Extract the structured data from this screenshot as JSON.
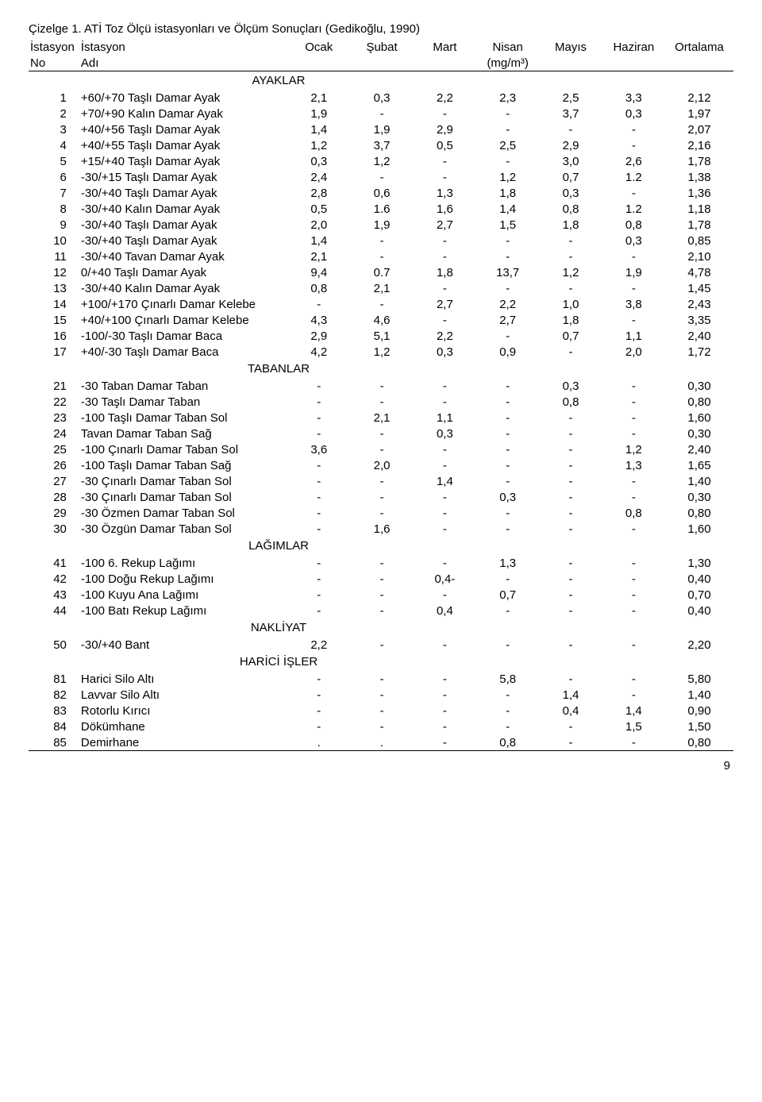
{
  "caption": "Çizelge 1. ATİ Toz Ölçü istasyonları ve Ölçüm Sonuçları (Gedikoğlu, 1990)",
  "header": {
    "col1_line1": "İstasyon",
    "col1_line2": "No",
    "col2_line1": "İstasyon",
    "col2_line2": "Adı",
    "m1": "Ocak",
    "m2": "Şubat",
    "m3": "Mart",
    "m4": "Nisan",
    "unit": "(mg/m³)",
    "m5": "Mayıs",
    "m6": "Haziran",
    "ort": "Ortalama"
  },
  "sections": [
    {
      "title": "AYAKLAR",
      "rows": [
        {
          "no": "1",
          "name": "+60/+70 Taşlı Damar Ayak",
          "v": [
            "2,1",
            "0,3",
            "2,2",
            "2,3",
            "2,5",
            "3,3",
            "2,12"
          ]
        },
        {
          "no": "2",
          "name": "+70/+90 Kalın Damar Ayak",
          "v": [
            "1,9",
            "-",
            "-",
            "-",
            "3,7",
            "0,3",
            "1,97"
          ]
        },
        {
          "no": "3",
          "name": "+40/+56 Taşlı Damar Ayak",
          "v": [
            "1,4",
            "1,9",
            "2,9",
            "-",
            "-",
            "-",
            "2,07"
          ]
        },
        {
          "no": "4",
          "name": "+40/+55 Taşlı Damar Ayak",
          "v": [
            "1,2",
            "3,7",
            "0,5",
            "2,5",
            "2,9",
            "-",
            "2,16"
          ]
        },
        {
          "no": "5",
          "name": "+15/+40 Taşlı Damar Ayak",
          "v": [
            "0,3",
            "1,2",
            "-",
            "-",
            "3,0",
            "2,6",
            "1,78"
          ]
        },
        {
          "no": "6",
          "name": "-30/+15 Taşlı Damar Ayak",
          "v": [
            "2,4",
            "-",
            "-",
            "1,2",
            "0,7",
            "1.2",
            "1,38"
          ]
        },
        {
          "no": "7",
          "name": "-30/+40 Taşlı Damar Ayak",
          "v": [
            "2,8",
            "0,6",
            "1,3",
            "1,8",
            "0,3",
            "-",
            "1,36"
          ]
        },
        {
          "no": "8",
          "name": "-30/+40 Kalın Damar Ayak",
          "v": [
            "0,5",
            "1.6",
            "1,6",
            "1,4",
            "0,8",
            "1.2",
            "1,18"
          ]
        },
        {
          "no": "9",
          "name": "-30/+40 Taşlı Damar Ayak",
          "v": [
            "2,0",
            "1,9",
            "2,7",
            "1,5",
            "1,8",
            "0,8",
            "1,78"
          ]
        },
        {
          "no": "10",
          "name": "-30/+40 Taşlı Damar Ayak",
          "v": [
            "1,4",
            "-",
            "-",
            "-",
            "-",
            "0,3",
            "0,85"
          ]
        },
        {
          "no": "11",
          "name": "-30/+40 Tavan Damar Ayak",
          "v": [
            "2,1",
            "-",
            "-",
            "-",
            "-",
            "-",
            "2,10"
          ]
        },
        {
          "no": "12",
          "name": "0/+40 Taşlı Damar Ayak",
          "v": [
            "9,4",
            "0.7",
            "1,8",
            "13,7",
            "1,2",
            "1,9",
            "4,78"
          ]
        },
        {
          "no": "13",
          "name": "-30/+40 Kalın Damar Ayak",
          "v": [
            "0,8",
            "2,1",
            "-",
            "-",
            "-",
            "-",
            "1,45"
          ]
        },
        {
          "no": "14",
          "name": "+100/+170 Çınarlı Damar Kelebe",
          "v": [
            "-",
            "-",
            "2,7",
            "2,2",
            "1,0",
            "3,8",
            "2,43"
          ]
        },
        {
          "no": "15",
          "name": "+40/+100 Çınarlı Damar Kelebe",
          "v": [
            "4,3",
            "4,6",
            "-",
            "2,7",
            "1,8",
            "-",
            "3,35"
          ]
        },
        {
          "no": "16",
          "name": "-100/-30 Taşlı Damar Baca",
          "v": [
            "2,9",
            "5,1",
            "2,2",
            "-",
            "0,7",
            "1,1",
            "2,40"
          ]
        },
        {
          "no": "17",
          "name": "+40/-30 Taşlı Damar Baca",
          "v": [
            "4,2",
            "1,2",
            "0,3",
            "0,9",
            "-",
            "2,0",
            "1,72"
          ]
        }
      ]
    },
    {
      "title": "TABANLAR",
      "rows": [
        {
          "no": "21",
          "name": "-30 Taban Damar Taban",
          "v": [
            "-",
            "-",
            "-",
            "-",
            "0,3",
            "-",
            "0,30"
          ]
        },
        {
          "no": "22",
          "name": "-30 Taşlı Damar Taban",
          "v": [
            "-",
            "-",
            "-",
            "-",
            "0,8",
            "-",
            "0,80"
          ]
        },
        {
          "no": "23",
          "name": "-100 Taşlı Damar Taban Sol",
          "v": [
            "-",
            "2,1",
            "1,1",
            "-",
            "-",
            "-",
            "1,60"
          ]
        },
        {
          "no": "24",
          "name": "Tavan Damar Taban Sağ",
          "v": [
            "-",
            "-",
            "0,3",
            "-",
            "-",
            "-",
            "0,30"
          ]
        },
        {
          "no": "25",
          "name": "-100 Çınarlı Damar Taban Sol",
          "v": [
            "3,6",
            "-",
            "-",
            "-",
            "-",
            "1,2",
            "2,40"
          ]
        },
        {
          "no": "26",
          "name": "-100 Taşlı Damar Taban Sağ",
          "v": [
            "-",
            "2,0",
            "-",
            "-",
            "-",
            "1,3",
            "1,65"
          ]
        },
        {
          "no": "27",
          "name": "-30 Çınarlı Damar Taban Sol",
          "v": [
            "-",
            "-",
            "1,4",
            "-",
            "-",
            "-",
            "1,40"
          ]
        },
        {
          "no": "28",
          "name": "-30 Çınarlı Damar Taban Sol",
          "v": [
            "-",
            "-",
            "-",
            "0,3",
            "-",
            "-",
            "0,30"
          ]
        },
        {
          "no": "29",
          "name": "-30 Özmen Damar Taban Sol",
          "v": [
            "-",
            "-",
            "-",
            "-",
            "-",
            "0,8",
            "0,80"
          ]
        },
        {
          "no": "30",
          "name": "-30 Özgün Damar Taban Sol",
          "v": [
            "-",
            "1,6",
            "-",
            "-",
            "-",
            "-",
            "1,60"
          ]
        }
      ]
    },
    {
      "title": "LAĞIMLAR",
      "rows": [
        {
          "no": "41",
          "name": "-100 6. Rekup Lağımı",
          "v": [
            "-",
            "-",
            "-",
            "1,3",
            "-",
            "-",
            "1,30"
          ]
        },
        {
          "no": "42",
          "name": "-100 Doğu Rekup Lağımı",
          "v": [
            "-",
            "-",
            "0,4-",
            "-",
            "-",
            "-",
            "0,40"
          ]
        },
        {
          "no": "43",
          "name": "-100 Kuyu Ana Lağımı",
          "v": [
            "-",
            "-",
            "-",
            "0,7",
            "-",
            "-",
            "0,70"
          ]
        },
        {
          "no": "44",
          "name": "-100 Batı Rekup Lağımı",
          "v": [
            "-",
            "-",
            "0,4",
            "-",
            "-",
            "-",
            "0,40"
          ]
        }
      ]
    },
    {
      "title": "NAKLİYAT",
      "rows": [
        {
          "no": "50",
          "name": "-30/+40 Bant",
          "v": [
            "2,2",
            "-",
            "-",
            "-",
            "-",
            "-",
            "2,20"
          ]
        }
      ]
    },
    {
      "title": "HARİCİ İŞLER",
      "rows": [
        {
          "no": "81",
          "name": "Harici Silo Altı",
          "v": [
            "-",
            "-",
            "-",
            "5,8",
            "-",
            "-",
            "5,80"
          ]
        },
        {
          "no": "82",
          "name": "Lavvar Silo Altı",
          "v": [
            "-",
            "-",
            "-",
            "-",
            "1,4",
            "-",
            "1,40"
          ]
        },
        {
          "no": "83",
          "name": "Rotorlu Kırıcı",
          "v": [
            "-",
            "-",
            "-",
            "-",
            "0,4",
            "1,4",
            "0,90"
          ]
        },
        {
          "no": "84",
          "name": "Dökümhane",
          "v": [
            "-",
            "-",
            "-",
            "-",
            "-",
            "1,5",
            "1,50"
          ]
        },
        {
          "no": "85",
          "name": "Demirhane",
          "v": [
            ".",
            ".",
            "-",
            "0,8",
            "-",
            "-",
            "0,80"
          ]
        }
      ]
    }
  ],
  "pageNumber": "9"
}
